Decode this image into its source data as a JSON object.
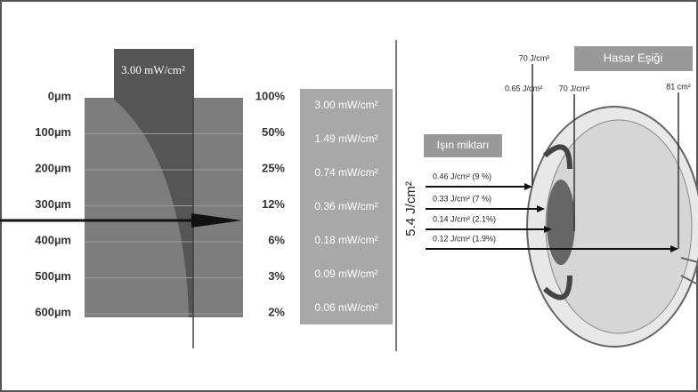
{
  "left": {
    "beam_label": "3.00 mW/cm²",
    "depths": [
      "0µm",
      "100µm",
      "200µm",
      "300µm",
      "400µm",
      "500µm",
      "600µm"
    ],
    "percents": [
      "100%",
      "50%",
      "25%",
      "12%",
      "6%",
      "3%",
      "2%"
    ],
    "irradiances": [
      "3.00 mW/cm²",
      "1.49 mW/cm²",
      "0.74 mW/cm²",
      "0.36 mW/cm²",
      "0.18 mW/cm²",
      "0.09 mW/cm²",
      "0.06 mW/cm²"
    ]
  },
  "right": {
    "dose_label": "Işın miktarı",
    "total_dose": "5.4 J/cm²",
    "threshold_label": "Hasar Eşiği",
    "thresholds": [
      "70 J/cm²",
      "0.65 J/cm²",
      "70 J/cm²",
      "81 cm²"
    ],
    "arrows": [
      "0.46 J/cm² (9 %)",
      "0.33 J/cm² (7 %)",
      "0.14 J/cm² (2.1%)",
      "0.12 J/cm² (1.9%)"
    ]
  }
}
